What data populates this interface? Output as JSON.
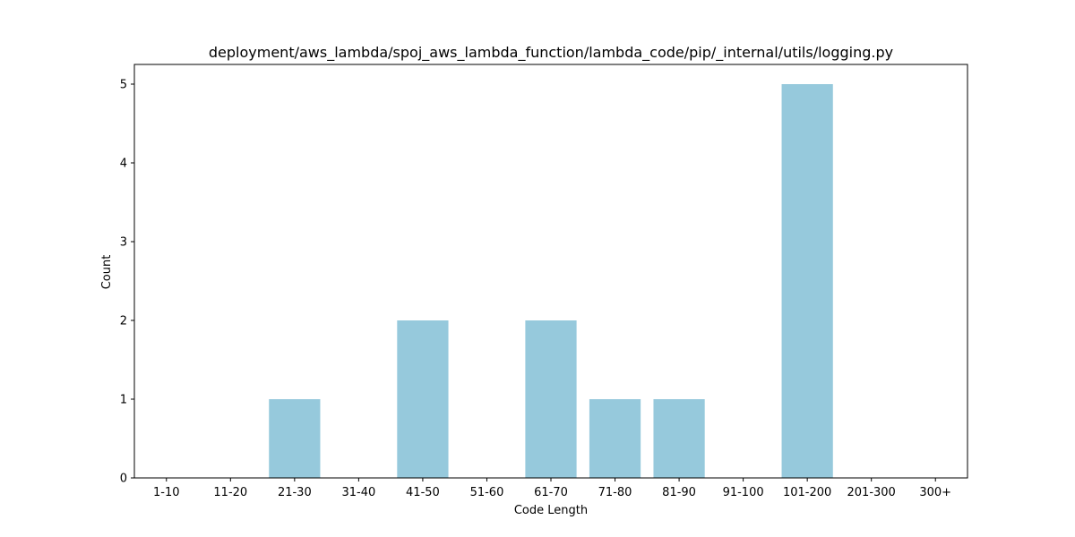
{
  "chart_data": {
    "type": "bar",
    "title": "deployment/aws_lambda/spoj_aws_lambda_function/lambda_code/pip/_internal/utils/logging.py",
    "xlabel": "Code Length",
    "ylabel": "Count",
    "categories": [
      "1-10",
      "11-20",
      "21-30",
      "31-40",
      "41-50",
      "51-60",
      "61-70",
      "71-80",
      "81-90",
      "91-100",
      "101-200",
      "201-300",
      "300+"
    ],
    "values": [
      0,
      0,
      1,
      0,
      2,
      0,
      2,
      1,
      1,
      0,
      5,
      0,
      0
    ],
    "ylim": [
      0,
      5.25
    ],
    "yticks": [
      0,
      1,
      2,
      3,
      4,
      5
    ],
    "bar_color": "#96c9dc",
    "grid": false,
    "legend": "none"
  }
}
